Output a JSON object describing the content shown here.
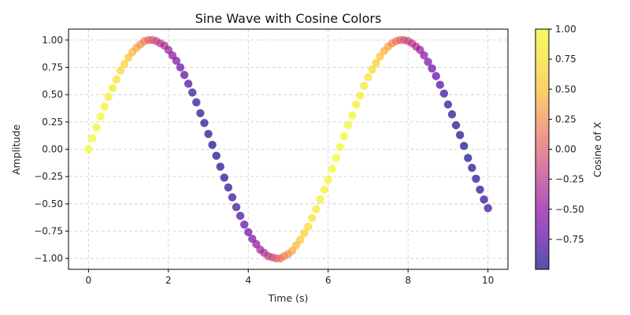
{
  "chart_data": {
    "type": "scatter",
    "title": "Sine Wave with Cosine Colors",
    "xlabel": "Time (s)",
    "ylabel": "Amplitude",
    "xlim": [
      -0.5,
      10.5
    ],
    "ylim": [
      -1.1,
      1.1
    ],
    "xticks": [
      0,
      2,
      4,
      6,
      8,
      10
    ],
    "xtick_labels": [
      "0",
      "2",
      "4",
      "6",
      "8",
      "10"
    ],
    "yticks": [
      -1.0,
      -0.75,
      -0.5,
      -0.25,
      0.0,
      0.25,
      0.5,
      0.75,
      1.0
    ],
    "ytick_labels": [
      "−1.00",
      "−0.75",
      "−0.50",
      "−0.25",
      "0.00",
      "0.25",
      "0.50",
      "0.75",
      "1.00"
    ],
    "grid": true,
    "colorbar": {
      "label": "Cosine of X",
      "colormap": "plasma",
      "range": [
        -1.0,
        1.0
      ],
      "ticks": [
        1.0,
        0.75,
        0.5,
        0.25,
        0.0,
        -0.25,
        -0.5,
        -0.75
      ],
      "tick_labels": [
        "1.00",
        "0.75",
        "0.50",
        "0.25",
        "0.00",
        "−0.25",
        "−0.50",
        "−0.75"
      ]
    },
    "marker_alpha": 0.7,
    "x": [
      0,
      0.1,
      0.2,
      0.3,
      0.4,
      0.5,
      0.6,
      0.7,
      0.8,
      0.9,
      1.0,
      1.1,
      1.2,
      1.3,
      1.4,
      1.5,
      1.6,
      1.7,
      1.8,
      1.9,
      2.0,
      2.1,
      2.2,
      2.3,
      2.4,
      2.5,
      2.6,
      2.7,
      2.8,
      2.9,
      3.0,
      3.1,
      3.2,
      3.3,
      3.4,
      3.5,
      3.6,
      3.7,
      3.8,
      3.9,
      4.0,
      4.1,
      4.2,
      4.3,
      4.4,
      4.5,
      4.6,
      4.7,
      4.8,
      4.9,
      5.0,
      5.1,
      5.2,
      5.3,
      5.4,
      5.5,
      5.6,
      5.7,
      5.8,
      5.9,
      6.0,
      6.1,
      6.2,
      6.3,
      6.4,
      6.5,
      6.6,
      6.7,
      6.8,
      6.9,
      7.0,
      7.1,
      7.2,
      7.3,
      7.4,
      7.5,
      7.6,
      7.7,
      7.8,
      7.9,
      8.0,
      8.1,
      8.2,
      8.3,
      8.4,
      8.5,
      8.6,
      8.7,
      8.8,
      8.9,
      9.0,
      9.1,
      9.2,
      9.3,
      9.4,
      9.5,
      9.6,
      9.7,
      9.8,
      9.9,
      10.0
    ],
    "y": [
      0.0,
      0.1,
      0.2,
      0.3,
      0.39,
      0.48,
      0.56,
      0.64,
      0.72,
      0.78,
      0.84,
      0.89,
      0.93,
      0.96,
      0.99,
      1.0,
      1.0,
      0.99,
      0.97,
      0.95,
      0.91,
      0.86,
      0.81,
      0.75,
      0.68,
      0.6,
      0.52,
      0.43,
      0.33,
      0.24,
      0.14,
      0.04,
      -0.06,
      -0.16,
      -0.26,
      -0.35,
      -0.44,
      -0.53,
      -0.61,
      -0.69,
      -0.76,
      -0.82,
      -0.87,
      -0.92,
      -0.95,
      -0.98,
      -0.99,
      -1.0,
      -1.0,
      -0.98,
      -0.96,
      -0.93,
      -0.88,
      -0.83,
      -0.77,
      -0.71,
      -0.63,
      -0.55,
      -0.46,
      -0.37,
      -0.28,
      -0.18,
      -0.08,
      0.02,
      0.12,
      0.22,
      0.31,
      0.41,
      0.49,
      0.58,
      0.66,
      0.73,
      0.79,
      0.85,
      0.9,
      0.94,
      0.97,
      0.99,
      1.0,
      1.0,
      0.99,
      0.97,
      0.94,
      0.91,
      0.86,
      0.8,
      0.74,
      0.67,
      0.59,
      0.51,
      0.41,
      0.32,
      0.22,
      0.13,
      0.03,
      -0.08,
      -0.17,
      -0.27,
      -0.37,
      -0.46,
      -0.54
    ],
    "color_values": [
      1.0,
      1.0,
      0.98,
      0.96,
      0.92,
      0.88,
      0.83,
      0.76,
      0.7,
      0.62,
      0.54,
      0.45,
      0.36,
      0.27,
      0.17,
      0.07,
      -0.03,
      -0.13,
      -0.23,
      -0.32,
      -0.42,
      -0.5,
      -0.59,
      -0.67,
      -0.74,
      -0.8,
      -0.86,
      -0.9,
      -0.94,
      -0.97,
      -0.99,
      -1.0,
      -1.0,
      -0.99,
      -0.97,
      -0.94,
      -0.9,
      -0.85,
      -0.79,
      -0.73,
      -0.65,
      -0.57,
      -0.49,
      -0.4,
      -0.31,
      -0.21,
      -0.11,
      -0.01,
      0.09,
      0.19,
      0.28,
      0.38,
      0.47,
      0.55,
      0.63,
      0.71,
      0.78,
      0.83,
      0.89,
      0.93,
      0.96,
      0.98,
      1.0,
      1.0,
      0.99,
      0.98,
      0.95,
      0.91,
      0.87,
      0.81,
      0.75,
      0.68,
      0.61,
      0.52,
      0.44,
      0.35,
      0.25,
      0.15,
      0.05,
      -0.05,
      -0.15,
      -0.24,
      -0.34,
      -0.43,
      -0.52,
      -0.6,
      -0.68,
      -0.75,
      -0.81,
      -0.86,
      -0.91,
      -0.95,
      -0.97,
      -0.99,
      -1.0,
      -1.0,
      -0.99,
      -0.97,
      -0.94,
      -0.9,
      -0.84
    ]
  }
}
